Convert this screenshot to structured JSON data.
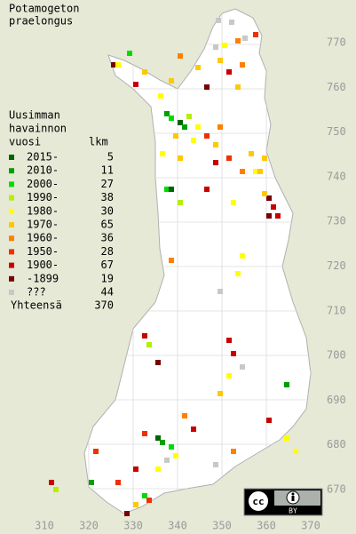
{
  "title": [
    "Potamogeton",
    "praelongus"
  ],
  "legend": {
    "heading": [
      "Uusimman",
      "havainnon",
      "vuosi"
    ],
    "count_header": "lkm",
    "rows": [
      {
        "label": "2015-",
        "count": 5,
        "color": "#006400"
      },
      {
        "label": "2010-",
        "count": 11,
        "color": "#00a000"
      },
      {
        "label": "2000-",
        "count": 27,
        "color": "#00dc00"
      },
      {
        "label": "1990-",
        "count": 38,
        "color": "#b4f000"
      },
      {
        "label": "1980-",
        "count": 30,
        "color": "#ffff00"
      },
      {
        "label": "1970-",
        "count": 65,
        "color": "#ffc800"
      },
      {
        "label": "1960-",
        "count": 36,
        "color": "#ff8000"
      },
      {
        "label": "1950-",
        "count": 28,
        "color": "#f03000"
      },
      {
        "label": "1900-",
        "count": 67,
        "color": "#c80000"
      },
      {
        "label": "-1899",
        "count": 19,
        "color": "#780000"
      },
      {
        "label": "???",
        "count": 44,
        "color": "#c8c8c8"
      }
    ],
    "total": {
      "label": "Yhteensä",
      "count": 370
    }
  },
  "axis": {
    "y_labels": [
      "770",
      "760",
      "750",
      "740",
      "730",
      "720",
      "710",
      "700",
      "690",
      "680",
      "670"
    ],
    "x_labels": [
      "310",
      "320",
      "330",
      "340",
      "350",
      "360",
      "370"
    ]
  },
  "license": {
    "icon": "cc",
    "label": "BY"
  }
}
